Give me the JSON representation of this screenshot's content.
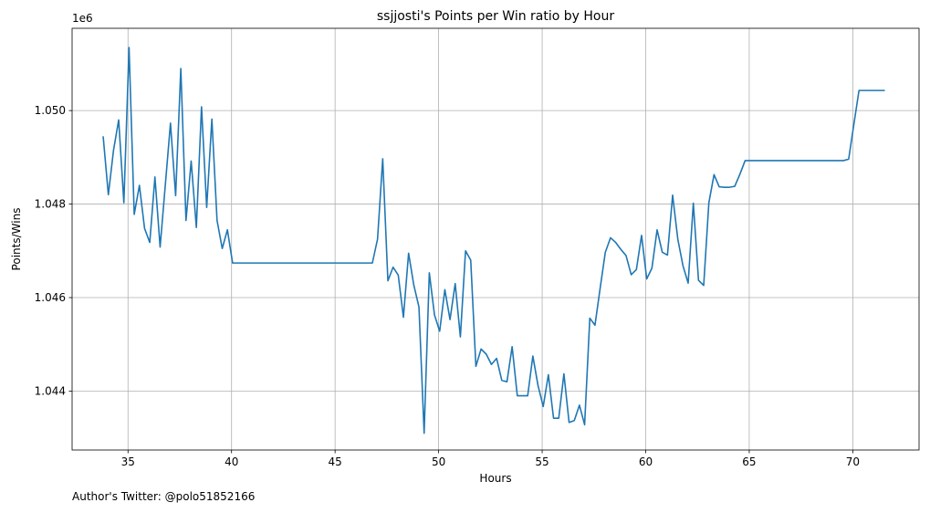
{
  "chart_data": {
    "type": "line",
    "title": "ssjjosti's Points per Win ratio by Hour",
    "xlabel": "Hours",
    "ylabel": "Points/Wins",
    "y_offset_label": "1e6",
    "xlim": [
      32.3,
      73.2
    ],
    "ylim": [
      1.04274,
      1.05176
    ],
    "xticks": [
      35,
      40,
      45,
      50,
      55,
      60,
      65,
      70
    ],
    "yticks": [
      1.044,
      1.046,
      1.048,
      1.05
    ],
    "ytick_labels": [
      "1.044",
      "1.046",
      "1.048",
      "1.050"
    ],
    "grid": true,
    "series": [
      {
        "color": "#1f77b4",
        "x": [
          33.8,
          34.05,
          34.3,
          34.55,
          34.8,
          35.05,
          35.3,
          35.55,
          35.8,
          36.05,
          36.3,
          36.55,
          36.8,
          37.05,
          37.3,
          37.55,
          37.8,
          38.05,
          38.3,
          38.55,
          38.8,
          39.05,
          39.3,
          39.55,
          39.8,
          40.05,
          46.8,
          47.05,
          47.3,
          47.55,
          47.8,
          48.05,
          48.3,
          48.55,
          48.8,
          49.05,
          49.3,
          49.55,
          49.8,
          50.05,
          50.3,
          50.55,
          50.8,
          51.05,
          51.3,
          51.55,
          51.8,
          52.05,
          52.3,
          52.55,
          52.8,
          53.05,
          53.3,
          53.55,
          53.8,
          54.05,
          54.3,
          54.55,
          54.8,
          55.05,
          55.3,
          55.55,
          55.8,
          56.05,
          56.3,
          56.55,
          56.8,
          57.05,
          57.3,
          57.55,
          57.8,
          58.05,
          58.3,
          58.55,
          58.8,
          59.05,
          59.3,
          59.55,
          59.8,
          60.05,
          60.3,
          60.55,
          60.8,
          61.05,
          61.3,
          61.55,
          61.8,
          62.05,
          62.3,
          62.55,
          62.8,
          63.05,
          63.3,
          63.55,
          63.8,
          64.05,
          64.3,
          64.55,
          64.8,
          69.55,
          69.8,
          70.05,
          70.3,
          71.55
        ],
        "values": [
          1.04945,
          1.0482,
          1.04915,
          1.0498,
          1.04803,
          1.05135,
          1.04778,
          1.0484,
          1.04748,
          1.04718,
          1.04858,
          1.04708,
          1.0484,
          1.04973,
          1.04818,
          1.0509,
          1.04765,
          1.04892,
          1.0475,
          1.05008,
          1.04793,
          1.04982,
          1.04765,
          1.04705,
          1.04745,
          1.04674,
          1.04674,
          1.04725,
          1.04897,
          1.04636,
          1.04665,
          1.04648,
          1.04558,
          1.04695,
          1.04627,
          1.0458,
          1.0431,
          1.04653,
          1.04563,
          1.04528,
          1.04617,
          1.04553,
          1.0463,
          1.04516,
          1.047,
          1.0468,
          1.04453,
          1.0449,
          1.04479,
          1.04457,
          1.0447,
          1.04423,
          1.0442,
          1.04495,
          1.0439,
          1.0439,
          1.0439,
          1.04475,
          1.04412,
          1.04367,
          1.04435,
          1.04342,
          1.04342,
          1.04437,
          1.04333,
          1.04337,
          1.0437,
          1.04328,
          1.04556,
          1.04541,
          1.0462,
          1.04697,
          1.04728,
          1.04718,
          1.04703,
          1.0469,
          1.04649,
          1.0466,
          1.04733,
          1.0464,
          1.04663,
          1.04745,
          1.04697,
          1.04691,
          1.04819,
          1.04725,
          1.04668,
          1.04631,
          1.04802,
          1.04637,
          1.04626,
          1.04803,
          1.04863,
          1.04837,
          1.04836,
          1.04836,
          1.04838,
          1.04864,
          1.04893,
          1.04893,
          1.04896,
          1.0497,
          1.05043,
          1.05043
        ]
      }
    ]
  },
  "footer": {
    "author_note": "Author's Twitter: @polo51852166"
  }
}
